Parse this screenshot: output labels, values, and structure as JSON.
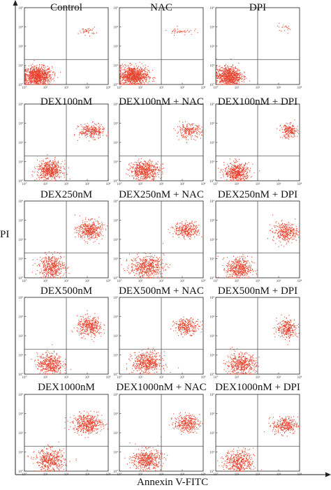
{
  "figure": {
    "x_axis_label": "Annexin V-FITC",
    "y_axis_label": "PI"
  },
  "colors": {
    "dots": "#e8412c",
    "axes": "#222222",
    "quadrant_lines": "#555555"
  },
  "chart_data": {
    "type": "scatter",
    "scale": "log",
    "xlim": [
      1,
      10000
    ],
    "ylim": [
      1,
      10000
    ],
    "tick_labels": [
      "10°",
      "10¹",
      "10²",
      "10³",
      "10⁴"
    ],
    "grid": false,
    "layout": "5 rows × 3 columns of flow-cytometry quadrant plots",
    "panels": [
      {
        "title": "Control",
        "quadrant_x": 100,
        "quadrant_y": 20,
        "populations": [
          {
            "cx": 0.6,
            "cy": 0.45,
            "sx": 0.35,
            "sy": 0.25,
            "n": 900
          },
          {
            "cx": 3.0,
            "cy": 2.8,
            "sx": 0.2,
            "sy": 0.1,
            "n": 40
          }
        ]
      },
      {
        "title": "NAC",
        "quadrant_x": 100,
        "quadrant_y": 20,
        "populations": [
          {
            "cx": 0.65,
            "cy": 0.45,
            "sx": 0.35,
            "sy": 0.25,
            "n": 900
          },
          {
            "cx": 2.9,
            "cy": 2.8,
            "sx": 0.3,
            "sy": 0.1,
            "n": 40
          }
        ]
      },
      {
        "title": "DPI",
        "quadrant_x": 100,
        "quadrant_y": 20,
        "populations": [
          {
            "cx": 0.6,
            "cy": 0.45,
            "sx": 0.3,
            "sy": 0.25,
            "n": 800
          },
          {
            "cx": 3.3,
            "cy": 3.0,
            "sx": 0.2,
            "sy": 0.1,
            "n": 20
          }
        ]
      },
      {
        "title": "DEX100nM",
        "quadrant_x": 100,
        "quadrant_y": 20,
        "populations": [
          {
            "cx": 1.2,
            "cy": 0.55,
            "sx": 0.3,
            "sy": 0.25,
            "n": 550
          },
          {
            "cx": 3.2,
            "cy": 2.6,
            "sx": 0.3,
            "sy": 0.18,
            "n": 280
          }
        ]
      },
      {
        "title": "DEX100nM + NAC",
        "quadrant_x": 100,
        "quadrant_y": 20,
        "populations": [
          {
            "cx": 1.2,
            "cy": 0.55,
            "sx": 0.35,
            "sy": 0.25,
            "n": 550
          },
          {
            "cx": 3.3,
            "cy": 2.6,
            "sx": 0.3,
            "sy": 0.18,
            "n": 220
          }
        ]
      },
      {
        "title": "DEX100nM + DPI",
        "quadrant_x": 100,
        "quadrant_y": 20,
        "populations": [
          {
            "cx": 1.0,
            "cy": 0.45,
            "sx": 0.3,
            "sy": 0.25,
            "n": 500
          },
          {
            "cx": 3.5,
            "cy": 2.6,
            "sx": 0.2,
            "sy": 0.18,
            "n": 200
          }
        ]
      },
      {
        "title": "DEX250nM",
        "quadrant_x": 100,
        "quadrant_y": 20,
        "populations": [
          {
            "cx": 1.3,
            "cy": 0.6,
            "sx": 0.3,
            "sy": 0.3,
            "n": 450
          },
          {
            "cx": 3.1,
            "cy": 2.5,
            "sx": 0.3,
            "sy": 0.25,
            "n": 400
          }
        ]
      },
      {
        "title": "DEX250nM + NAC",
        "quadrant_x": 100,
        "quadrant_y": 20,
        "populations": [
          {
            "cx": 1.3,
            "cy": 0.6,
            "sx": 0.4,
            "sy": 0.28,
            "n": 500
          },
          {
            "cx": 3.2,
            "cy": 2.5,
            "sx": 0.3,
            "sy": 0.2,
            "n": 300
          }
        ]
      },
      {
        "title": "DEX250nM + DPI",
        "quadrant_x": 100,
        "quadrant_y": 20,
        "populations": [
          {
            "cx": 1.1,
            "cy": 0.5,
            "sx": 0.3,
            "sy": 0.3,
            "n": 450
          },
          {
            "cx": 3.3,
            "cy": 2.4,
            "sx": 0.3,
            "sy": 0.25,
            "n": 330
          }
        ]
      },
      {
        "title": "DEX500nM",
        "quadrant_x": 100,
        "quadrant_y": 20,
        "populations": [
          {
            "cx": 1.2,
            "cy": 0.55,
            "sx": 0.3,
            "sy": 0.28,
            "n": 450
          },
          {
            "cx": 3.1,
            "cy": 2.5,
            "sx": 0.3,
            "sy": 0.25,
            "n": 380
          }
        ]
      },
      {
        "title": "DEX500nM + NAC",
        "quadrant_x": 100,
        "quadrant_y": 20,
        "populations": [
          {
            "cx": 1.3,
            "cy": 0.6,
            "sx": 0.35,
            "sy": 0.28,
            "n": 500
          },
          {
            "cx": 3.2,
            "cy": 2.5,
            "sx": 0.3,
            "sy": 0.2,
            "n": 280
          }
        ]
      },
      {
        "title": "DEX500nM + DPI",
        "quadrant_x": 100,
        "quadrant_y": 20,
        "populations": [
          {
            "cx": 1.2,
            "cy": 0.5,
            "sx": 0.35,
            "sy": 0.3,
            "n": 480
          },
          {
            "cx": 3.4,
            "cy": 2.4,
            "sx": 0.25,
            "sy": 0.25,
            "n": 280
          }
        ]
      },
      {
        "title": "DEX1000nM",
        "quadrant_x": 100,
        "quadrant_y": 20,
        "populations": [
          {
            "cx": 1.2,
            "cy": 0.55,
            "sx": 0.35,
            "sy": 0.3,
            "n": 450
          },
          {
            "cx": 3.0,
            "cy": 2.5,
            "sx": 0.35,
            "sy": 0.25,
            "n": 480
          }
        ]
      },
      {
        "title": "DEX1000nM + NAC",
        "quadrant_x": 100,
        "quadrant_y": 20,
        "populations": [
          {
            "cx": 1.3,
            "cy": 0.6,
            "sx": 0.35,
            "sy": 0.28,
            "n": 480
          },
          {
            "cx": 3.2,
            "cy": 2.5,
            "sx": 0.3,
            "sy": 0.22,
            "n": 330
          }
        ]
      },
      {
        "title": "DEX1000nM + DPI",
        "quadrant_x": 100,
        "quadrant_y": 20,
        "populations": [
          {
            "cx": 1.1,
            "cy": 0.5,
            "sx": 0.35,
            "sy": 0.3,
            "n": 420
          },
          {
            "cx": 3.3,
            "cy": 2.4,
            "sx": 0.3,
            "sy": 0.22,
            "n": 300
          }
        ]
      }
    ]
  }
}
